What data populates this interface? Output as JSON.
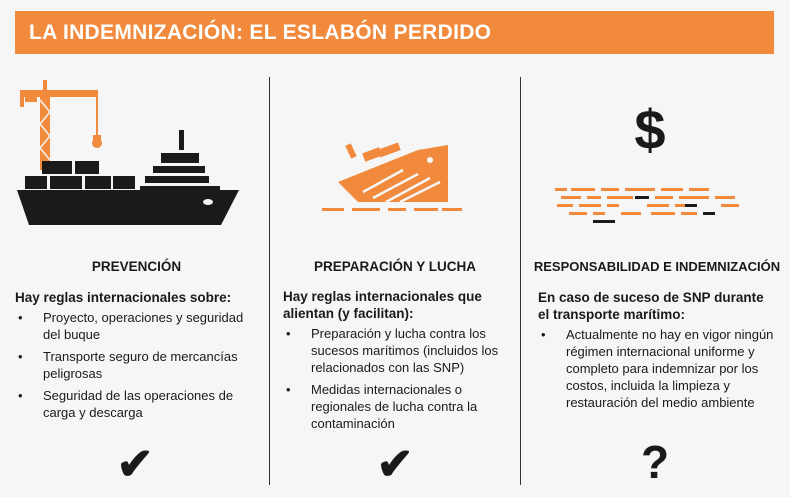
{
  "banner": {
    "title": "LA INDEMNIZACIÓN: EL ESLABÓN PERDIDO"
  },
  "colors": {
    "accent": "#f18a3c",
    "ink": "#1a1a1a",
    "background": "#f6f6f6"
  },
  "columns": [
    {
      "icon": "cargo-ship-with-crane-icon",
      "heading": "PREVENCIÓN",
      "intro": "Hay reglas internacionales sobre:",
      "bullets": [
        "Proyecto, operaciones y seguridad del buque",
        "Transporte seguro de mercancías peligrosas",
        "Seguridad de las operaciones de carga y descarga"
      ],
      "mark": "✔"
    },
    {
      "icon": "sinking-ship-icon",
      "heading": "PREPARACIÓN Y LUCHA",
      "intro": "Hay reglas internacionales que alientan (y facilitan):",
      "bullets": [
        "Preparación y lucha contra los sucesos marítimos (incluidos los relacionados con las SNP)",
        "Medidas internacionales o regionales de lucha contra la contaminación"
      ],
      "mark": "✔"
    },
    {
      "icon": "dollar-sign-icon",
      "dollar": "$",
      "heading": "RESPONSABILIDAD E INDEMNIZACIÓN",
      "intro": "En caso de suceso de SNP durante el transporte marítimo:",
      "bullets": [
        "Actualmente no hay en vigor ningún régimen internacional uniforme y completo para indemnizar por los costos, incluida la limpieza y restauración del medio ambiente"
      ],
      "mark": "?"
    }
  ]
}
